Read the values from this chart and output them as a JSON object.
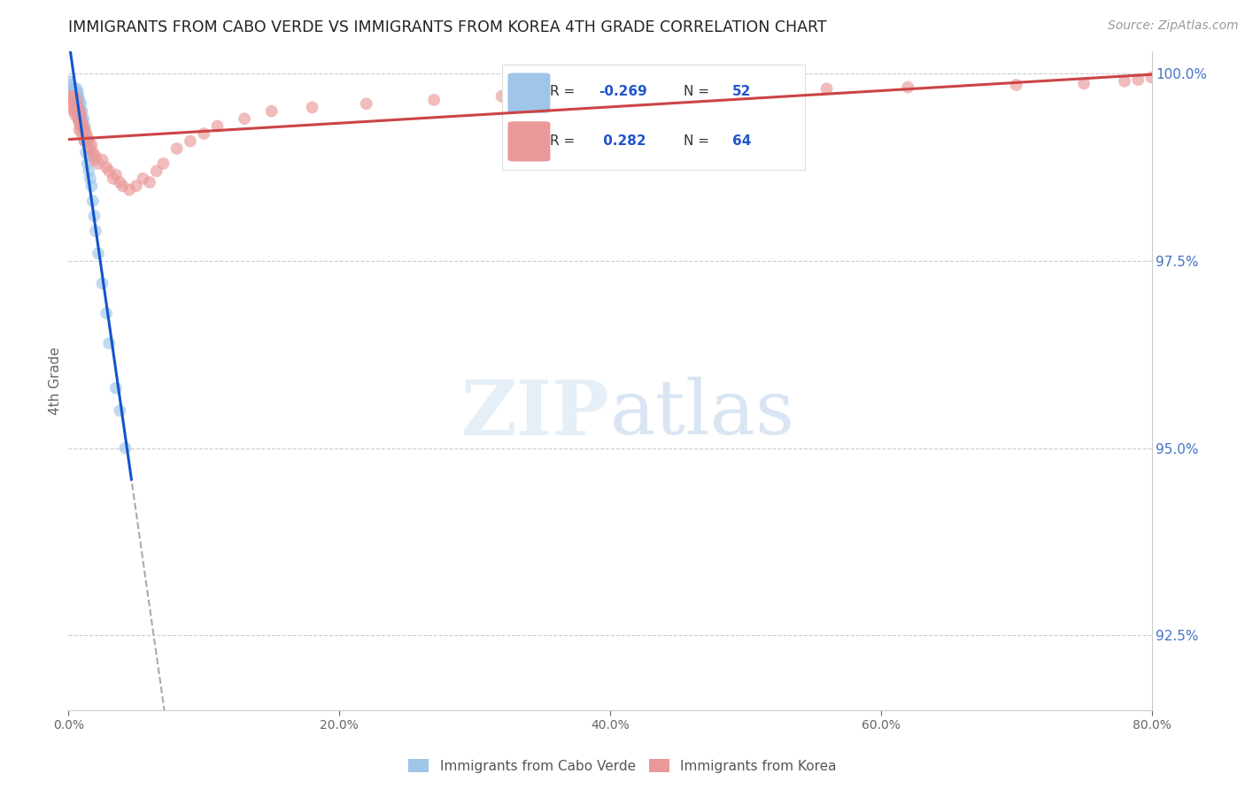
{
  "title": "IMMIGRANTS FROM CABO VERDE VS IMMIGRANTS FROM KOREA 4TH GRADE CORRELATION CHART",
  "source": "Source: ZipAtlas.com",
  "ylabel": "4th Grade",
  "yright_ticks": [
    92.5,
    95.0,
    97.5,
    100.0
  ],
  "blue_color": "#9fc5e8",
  "pink_color": "#ea9999",
  "blue_line_color": "#1155cc",
  "pink_line_color": "#cc4444",
  "cabo_verde_x": [
    0.001,
    0.002,
    0.003,
    0.003,
    0.004,
    0.004,
    0.004,
    0.005,
    0.005,
    0.005,
    0.006,
    0.006,
    0.006,
    0.006,
    0.007,
    0.007,
    0.007,
    0.007,
    0.007,
    0.008,
    0.008,
    0.008,
    0.008,
    0.008,
    0.009,
    0.009,
    0.009,
    0.009,
    0.01,
    0.01,
    0.01,
    0.011,
    0.011,
    0.012,
    0.012,
    0.013,
    0.013,
    0.014,
    0.015,
    0.015,
    0.016,
    0.017,
    0.018,
    0.019,
    0.02,
    0.022,
    0.025,
    0.028,
    0.03,
    0.035,
    0.038,
    0.042
  ],
  "cabo_verde_y": [
    99.9,
    99.85,
    99.8,
    99.7,
    99.8,
    99.75,
    99.65,
    99.75,
    99.7,
    99.6,
    99.8,
    99.7,
    99.65,
    99.55,
    99.75,
    99.7,
    99.65,
    99.6,
    99.5,
    99.65,
    99.6,
    99.55,
    99.45,
    99.35,
    99.6,
    99.5,
    99.4,
    99.3,
    99.5,
    99.4,
    99.3,
    99.4,
    99.25,
    99.3,
    99.1,
    99.1,
    98.95,
    98.8,
    98.9,
    98.7,
    98.6,
    98.5,
    98.3,
    98.1,
    97.9,
    97.6,
    97.2,
    96.8,
    96.4,
    95.8,
    95.5,
    95.0
  ],
  "korea_x": [
    0.001,
    0.002,
    0.003,
    0.003,
    0.004,
    0.004,
    0.005,
    0.005,
    0.006,
    0.006,
    0.007,
    0.007,
    0.008,
    0.008,
    0.008,
    0.009,
    0.009,
    0.01,
    0.01,
    0.011,
    0.012,
    0.012,
    0.013,
    0.014,
    0.015,
    0.016,
    0.017,
    0.018,
    0.019,
    0.02,
    0.022,
    0.025,
    0.028,
    0.03,
    0.033,
    0.035,
    0.038,
    0.04,
    0.045,
    0.05,
    0.055,
    0.06,
    0.065,
    0.07,
    0.08,
    0.09,
    0.1,
    0.11,
    0.13,
    0.15,
    0.18,
    0.22,
    0.27,
    0.32,
    0.38,
    0.43,
    0.5,
    0.56,
    0.62,
    0.7,
    0.75,
    0.78,
    0.79,
    0.8
  ],
  "korea_y": [
    99.7,
    99.65,
    99.6,
    99.55,
    99.7,
    99.5,
    99.6,
    99.45,
    99.65,
    99.5,
    99.55,
    99.4,
    99.5,
    99.35,
    99.25,
    99.45,
    99.3,
    99.35,
    99.2,
    99.3,
    99.25,
    99.1,
    99.2,
    99.15,
    99.1,
    99.0,
    99.05,
    98.95,
    98.85,
    98.9,
    98.8,
    98.85,
    98.75,
    98.7,
    98.6,
    98.65,
    98.55,
    98.5,
    98.45,
    98.5,
    98.6,
    98.55,
    98.7,
    98.8,
    99.0,
    99.1,
    99.2,
    99.3,
    99.4,
    99.5,
    99.55,
    99.6,
    99.65,
    99.7,
    99.72,
    99.75,
    99.78,
    99.8,
    99.82,
    99.85,
    99.87,
    99.9,
    99.92,
    99.95
  ],
  "xlim": [
    0.0,
    0.8
  ],
  "ylim": [
    91.5,
    100.3
  ],
  "background_color": "#ffffff",
  "grid_color": "#cccccc"
}
